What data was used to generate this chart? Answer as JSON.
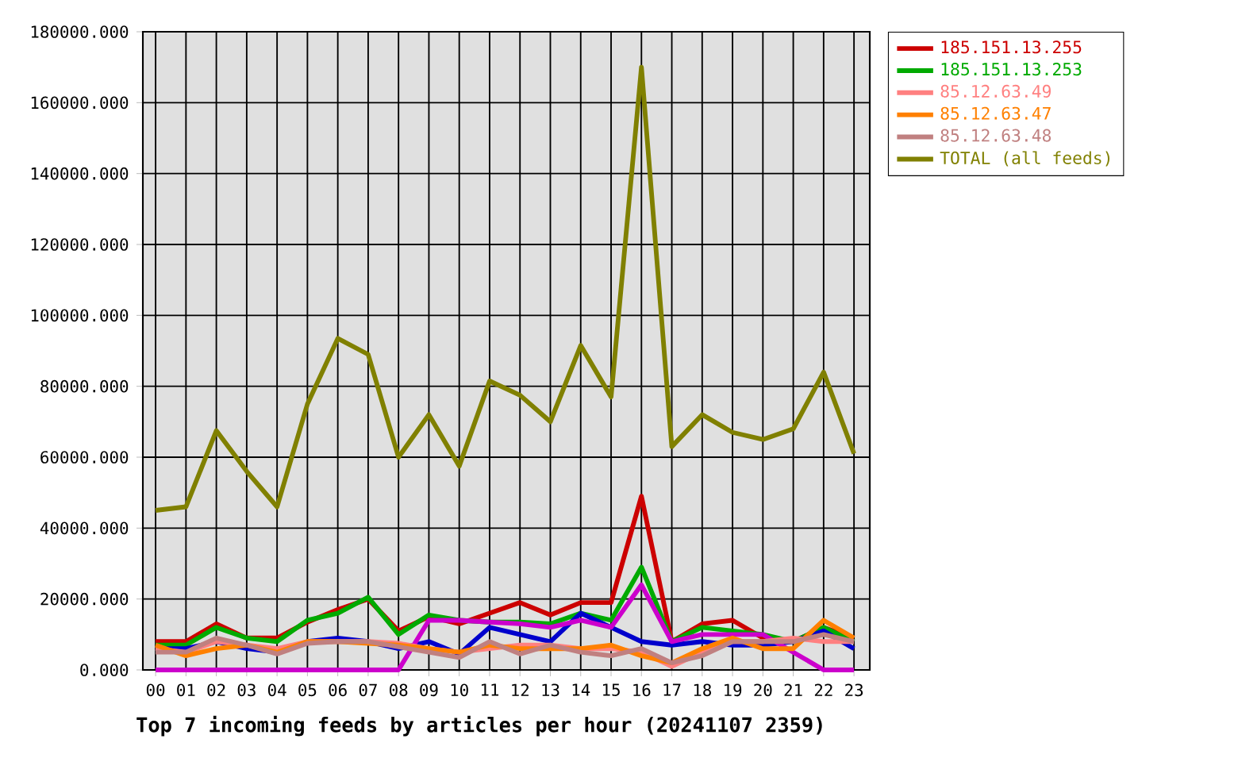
{
  "chart_data": {
    "type": "line",
    "title": "Top 7 incoming feeds by articles per hour (20241107 2359)",
    "categories": [
      "00",
      "01",
      "02",
      "03",
      "04",
      "05",
      "06",
      "07",
      "08",
      "09",
      "10",
      "11",
      "12",
      "13",
      "14",
      "15",
      "16",
      "17",
      "18",
      "19",
      "20",
      "21",
      "22",
      "23"
    ],
    "series": [
      {
        "name": "185.151.13.255",
        "color": "#cc0000",
        "values": [
          8000,
          8000,
          13000,
          9000,
          9000,
          13500,
          17000,
          20000,
          11000,
          15000,
          13000,
          16000,
          19000,
          15500,
          19000,
          19000,
          49000,
          8000,
          13000,
          14000,
          9000,
          8000,
          12000,
          9000
        ]
      },
      {
        "name": "185.151.13.253",
        "color": "#00aa00",
        "values": [
          7000,
          7000,
          12000,
          9000,
          8000,
          14000,
          16000,
          20500,
          10000,
          15500,
          14000,
          13500,
          13500,
          13000,
          16000,
          14000,
          29000,
          8000,
          12000,
          11000,
          10000,
          8000,
          12000,
          8000
        ]
      },
      {
        "color": "#0000cc",
        "values": [
          6000,
          6000,
          8000,
          6000,
          5000,
          8000,
          9000,
          8000,
          6000,
          8000,
          4500,
          12000,
          10000,
          8000,
          16000,
          12000,
          8000,
          7000,
          8000,
          7000,
          7000,
          8000,
          11000,
          6000
        ]
      },
      {
        "color": "#cc00cc",
        "values": [
          0,
          0,
          0,
          0,
          0,
          0,
          0,
          0,
          0,
          14000,
          14000,
          13500,
          13000,
          12000,
          14000,
          12000,
          24000,
          8000,
          10000,
          10000,
          10000,
          5000,
          0,
          0
        ]
      },
      {
        "name": "85.12.63.49",
        "color": "#ff8080",
        "values": [
          6000,
          5000,
          8000,
          7000,
          6000,
          8000,
          8000,
          8000,
          7500,
          6000,
          5000,
          6000,
          7000,
          7000,
          6000,
          6000,
          5000,
          1000,
          5000,
          8000,
          8000,
          9000,
          8000,
          8000
        ]
      },
      {
        "name": "85.12.63.47",
        "color": "#ff8000",
        "values": [
          7000,
          4000,
          6000,
          7000,
          5000,
          8000,
          8000,
          7500,
          7000,
          6000,
          5000,
          7000,
          6000,
          6000,
          6000,
          7000,
          4000,
          2000,
          6000,
          9000,
          6000,
          6000,
          14000,
          9000
        ]
      },
      {
        "name": "85.12.63.48",
        "color": "#c08080",
        "values": [
          5000,
          5000,
          9000,
          7000,
          4500,
          7500,
          8000,
          8000,
          6500,
          5000,
          3500,
          8000,
          4500,
          7000,
          5000,
          4000,
          6000,
          2000,
          4000,
          8000,
          8000,
          8000,
          10000,
          8000
        ]
      },
      {
        "name": "TOTAL (all feeds)",
        "color": "#808000",
        "values": [
          45000,
          46000,
          67500,
          56000,
          46000,
          75000,
          93500,
          89000,
          60000,
          72000,
          57500,
          81500,
          77500,
          70000,
          91500,
          77000,
          170000,
          63000,
          72000,
          67000,
          65000,
          68000,
          84000,
          61000
        ]
      }
    ],
    "ylim": [
      0,
      180000
    ],
    "yticks": [
      {
        "value": 0,
        "label": "0.000"
      },
      {
        "value": 20000,
        "label": "20000.000"
      },
      {
        "value": 40000,
        "label": "40000.000"
      },
      {
        "value": 60000,
        "label": "60000.000"
      },
      {
        "value": 80000,
        "label": "80000.000"
      },
      {
        "value": 100000,
        "label": "100000.000"
      },
      {
        "value": 120000,
        "label": "120000.000"
      },
      {
        "value": 140000,
        "label": "140000.000"
      },
      {
        "value": 160000,
        "label": "160000.000"
      },
      {
        "value": 180000,
        "label": "180000.000"
      }
    ],
    "grid": true,
    "legend": "top right",
    "line_style": "solid",
    "marker": "none"
  }
}
